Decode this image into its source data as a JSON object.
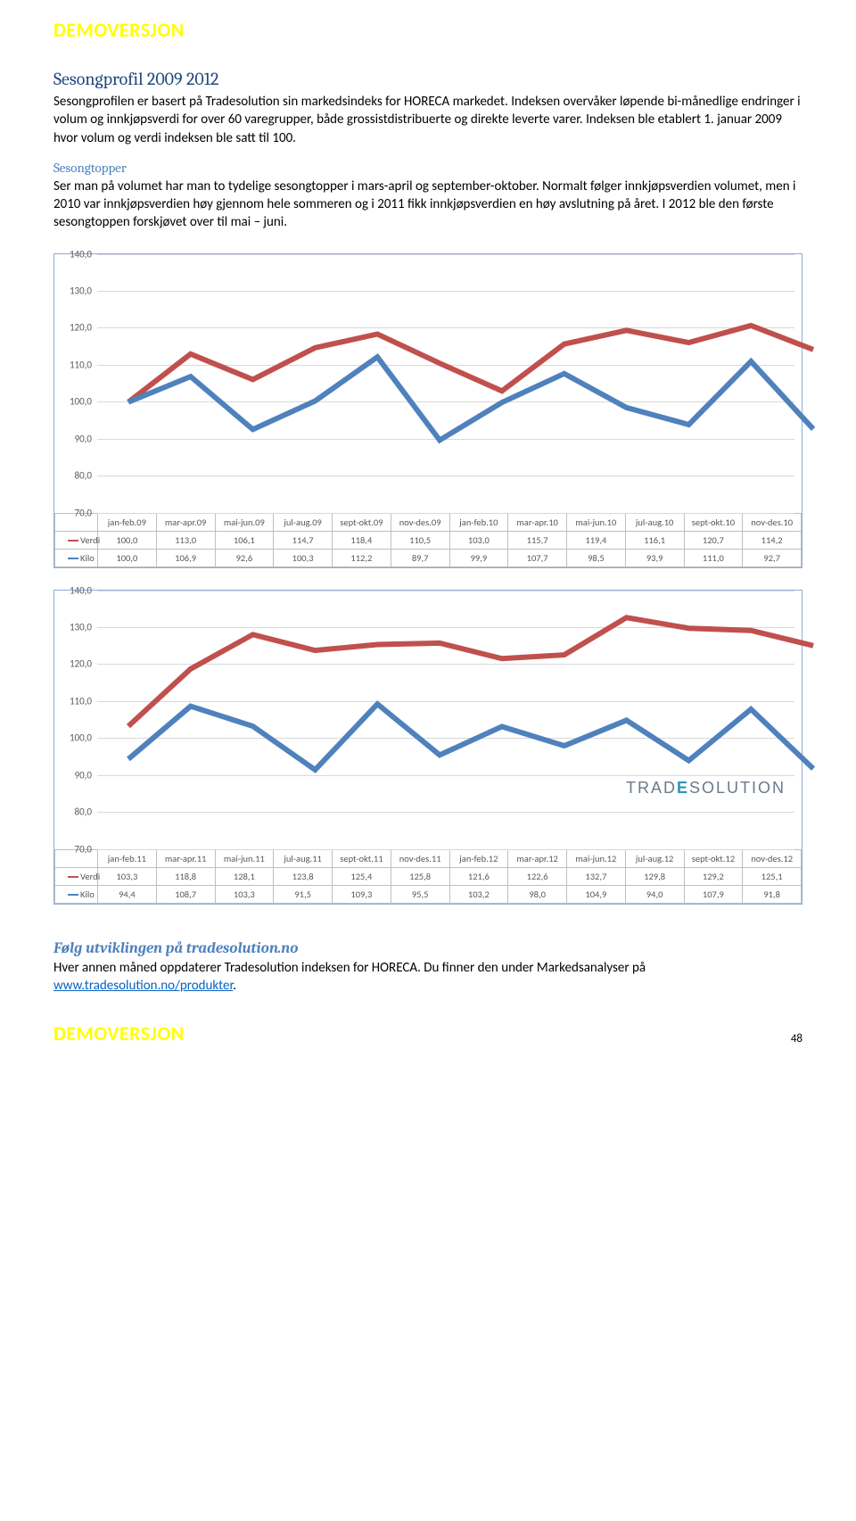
{
  "watermark": "DEMOVERSJON",
  "page_number": "48",
  "section": {
    "title": "Sesongprofil 2009 2012",
    "intro": "Sesongprofilen er basert på Tradesolution sin markedsindeks for HORECA markedet. Indeksen overvåker løpende bi-månedlige endringer i volum og innkjøpsverdi for over 60 varegrupper, både grossistdistribuerte og direkte leverte varer. Indeksen ble etablert 1. januar 2009 hvor volum og verdi indeksen ble satt til 100.",
    "sub_title": "Sesongtopper",
    "sub_body": "Ser man på volumet har man to tydelige sesongtopper i mars-april og september-oktober. Normalt følger innkjøpsverdien volumet, men i 2010 var innkjøpsverdien høy gjennom hele sommeren og i 2011 fikk innkjøpsverdien en høy avslutning på året. I 2012 ble den første sesongtoppen forskjøvet over til mai – juni."
  },
  "follow": {
    "title": "Følg utviklingen på tradesolution.no",
    "body_pre": "Hver annen måned oppdaterer Tradesolution indeksen for HORECA. Du finner den under Markedsanalyser på ",
    "link_text": "www.tradesolution.no/produkter",
    "link_href": "http://www.tradesolution.no/produkter",
    "body_post": "."
  },
  "chart_common": {
    "type": "line",
    "ylim": [
      70,
      140
    ],
    "yticks": [
      "70,0",
      "80,0",
      "90,0",
      "100,0",
      "110,0",
      "120,0",
      "130,0",
      "140,0"
    ],
    "series_colors": {
      "verdi": "#c0504d",
      "kilo": "#4f81bd"
    },
    "grid_color": "#d9d9d9",
    "border_color": "#8faadc",
    "text_color": "#595959",
    "label_fontsize": 11,
    "line_width": 1.6,
    "background_color": "#ffffff",
    "series_labels": {
      "verdi": "Verdi",
      "kilo": "Kilo"
    }
  },
  "chart1": {
    "categories": [
      "jan-feb.09",
      "mar-apr.09",
      "mai-jun.09",
      "jul-aug.09",
      "sept-okt.09",
      "nov-des.09",
      "jan-feb.10",
      "mar-apr.10",
      "mai-jun.10",
      "jul-aug.10",
      "sept-okt.10",
      "nov-des.10"
    ],
    "verdi": [
      "100,0",
      "113,0",
      "106,1",
      "114,7",
      "118,4",
      "110,5",
      "103,0",
      "115,7",
      "119,4",
      "116,1",
      "120,7",
      "114,2"
    ],
    "kilo": [
      "100,0",
      "106,9",
      "92,6",
      "100,3",
      "112,2",
      "89,7",
      "99,9",
      "107,7",
      "98,5",
      "93,9",
      "111,0",
      "92,7"
    ],
    "verdi_num": [
      100.0,
      113.0,
      106.1,
      114.7,
      118.4,
      110.5,
      103.0,
      115.7,
      119.4,
      116.1,
      120.7,
      114.2
    ],
    "kilo_num": [
      100.0,
      106.9,
      92.6,
      100.3,
      112.2,
      89.7,
      99.9,
      107.7,
      98.5,
      93.9,
      111.0,
      92.7
    ]
  },
  "chart2": {
    "categories": [
      "jan-feb.11",
      "mar-apr.11",
      "mai-jun.11",
      "jul-aug.11",
      "sept-okt.11",
      "nov-des.11",
      "jan-feb.12",
      "mar-apr.12",
      "mai-jun.12",
      "jul-aug.12",
      "sept-okt.12",
      "nov-des.12"
    ],
    "verdi": [
      "103,3",
      "118,8",
      "128,1",
      "123,8",
      "125,4",
      "125,8",
      "121,6",
      "122,6",
      "132,7",
      "129,8",
      "129,2",
      "125,1"
    ],
    "kilo": [
      "94,4",
      "108,7",
      "103,3",
      "91,5",
      "109,3",
      "95,5",
      "103,2",
      "98,0",
      "104,9",
      "94,0",
      "107,9",
      "91,8"
    ],
    "verdi_num": [
      103.3,
      118.8,
      128.1,
      123.8,
      125.4,
      125.8,
      121.6,
      122.6,
      132.7,
      129.8,
      129.2,
      125.1
    ],
    "kilo_num": [
      94.4,
      108.7,
      103.3,
      91.5,
      109.3,
      95.5,
      103.2,
      98.0,
      104.9,
      94.0,
      107.9,
      91.8
    ],
    "logo_text_pre": "TRAD",
    "logo_text_post": "SOLUTION"
  }
}
